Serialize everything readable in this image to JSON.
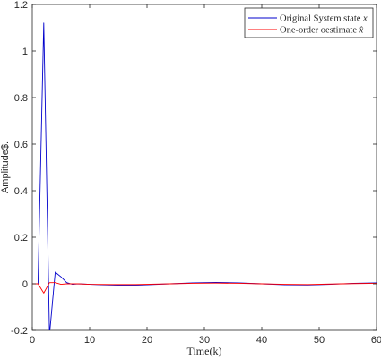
{
  "chart_data": {
    "type": "line",
    "title": "",
    "xlabel": "Time(k)",
    "ylabel": "Amplitude$.",
    "xlim": [
      0,
      60
    ],
    "ylim": [
      -0.2,
      1.2
    ],
    "xticks": [
      0,
      10,
      20,
      30,
      40,
      50,
      60
    ],
    "yticks": [
      -0.2,
      0,
      0.2,
      0.4,
      0.6,
      0.8,
      1,
      1.2
    ],
    "grid": false,
    "legend_position": "top-right",
    "series": [
      {
        "name": "Original System state",
        "name_math": "x",
        "color": "#0000cc",
        "x": [
          0,
          1,
          2,
          3,
          4,
          5,
          6,
          7,
          8,
          10,
          12,
          15,
          18,
          20,
          24,
          28,
          32,
          36,
          40,
          44,
          48,
          52,
          56,
          60
        ],
        "y": [
          0,
          0,
          1.12,
          -0.22,
          0.05,
          0.03,
          0.005,
          -0.002,
          0.0,
          -0.002,
          -0.004,
          -0.006,
          -0.006,
          -0.004,
          0.0,
          0.004,
          0.006,
          0.004,
          0.0,
          -0.004,
          -0.005,
          -0.002,
          0.002,
          0.004
        ]
      },
      {
        "name": "One-order oestimate",
        "name_math": "x̂",
        "color": "#ff0000",
        "x": [
          0,
          1,
          2,
          3,
          4,
          5,
          6,
          8,
          10,
          14,
          18,
          24,
          28,
          32,
          36,
          40,
          44,
          48,
          52,
          56,
          60
        ],
        "y": [
          0,
          0,
          -0.04,
          0.005,
          0.005,
          -0.002,
          0.0,
          0.0,
          -0.002,
          -0.003,
          -0.003,
          0.0,
          0.002,
          0.003,
          0.002,
          0.0,
          -0.002,
          -0.003,
          -0.001,
          0.001,
          0.002
        ]
      }
    ]
  }
}
